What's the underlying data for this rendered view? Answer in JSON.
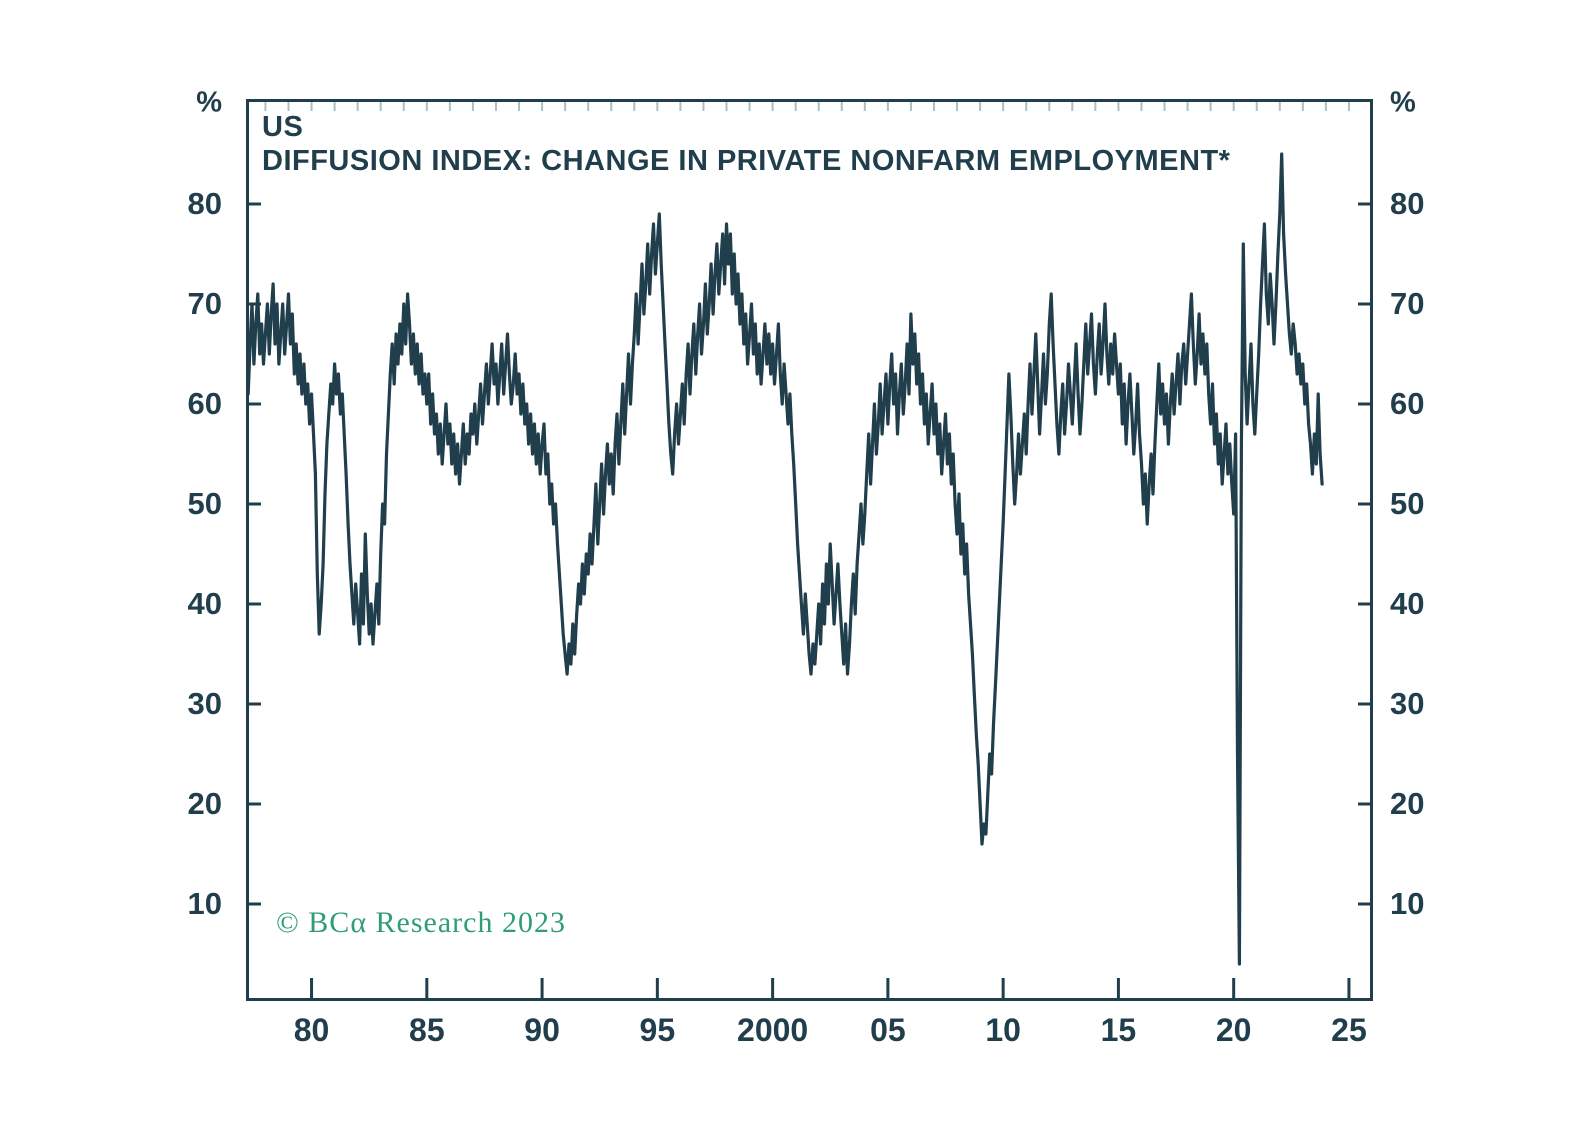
{
  "header": {
    "region": "US",
    "title": "DIFFUSION INDEX: CHANGE IN PRIVATE NONFARM EMPLOYMENT*"
  },
  "watermark": {
    "text": "© BCα Research 2023",
    "color": "#2f9e74"
  },
  "colors": {
    "ink": "#203e4b",
    "line": "#203e4b",
    "top_tick": "#aabfc7",
    "background": "#ffffff"
  },
  "axes": {
    "y": {
      "unit": "%",
      "tick_values": [
        10,
        20,
        30,
        40,
        50,
        60,
        70,
        80
      ],
      "labels_both_sides": true
    },
    "x": {
      "ticks": [
        {
          "year": 1980,
          "label": "80"
        },
        {
          "year": 1985,
          "label": "85"
        },
        {
          "year": 1990,
          "label": "90"
        },
        {
          "year": 1995,
          "label": "95"
        },
        {
          "year": 2000,
          "label": "2000"
        },
        {
          "year": 2005,
          "label": "05"
        },
        {
          "year": 2010,
          "label": "10"
        },
        {
          "year": 2015,
          "label": "15"
        },
        {
          "year": 2020,
          "label": "20"
        },
        {
          "year": 2025,
          "label": "25"
        }
      ],
      "top_minor_tick_start": 1978,
      "top_minor_tick_end": 2025
    }
  },
  "chart_data": {
    "type": "line",
    "title": "US DIFFUSION INDEX: CHANGE IN PRIVATE NONFARM EMPLOYMENT*",
    "xlabel": "",
    "ylabel": "%",
    "legend": "none",
    "grid": false,
    "xlim": [
      1977.2,
      2026.0
    ],
    "ylim": [
      0.4,
      90.4
    ],
    "x_start": 1977.25,
    "x_step": 0.0833333,
    "frequency": "monthly",
    "values": [
      61,
      66,
      70,
      64,
      68,
      71,
      65,
      68,
      64,
      67,
      70,
      65,
      69,
      72,
      66,
      70,
      64,
      67,
      70,
      65,
      68,
      71,
      66,
      69,
      63,
      66,
      62,
      65,
      61,
      64,
      60,
      62,
      58,
      61,
      57,
      53,
      43,
      37,
      40,
      44,
      51,
      56,
      59,
      62,
      60,
      64,
      61,
      63,
      59,
      61,
      57,
      53,
      48,
      44,
      41,
      38,
      42,
      39,
      36,
      43,
      38,
      47,
      41,
      37,
      40,
      36,
      39,
      42,
      38,
      45,
      50,
      48,
      55,
      59,
      63,
      66,
      62,
      67,
      64,
      68,
      65,
      70,
      66,
      71,
      68,
      64,
      67,
      63,
      66,
      62,
      65,
      61,
      63,
      60,
      63,
      58,
      61,
      57,
      59,
      55,
      58,
      54,
      57,
      60,
      56,
      58,
      54,
      57,
      53,
      56,
      52,
      55,
      58,
      54,
      57,
      55,
      59,
      57,
      60,
      56,
      59,
      62,
      58,
      61,
      64,
      60,
      63,
      66,
      62,
      64,
      60,
      63,
      66,
      61,
      64,
      67,
      63,
      60,
      62,
      65,
      61,
      63,
      59,
      62,
      58,
      60,
      56,
      59,
      55,
      58,
      54,
      57,
      53,
      56,
      58,
      53,
      55,
      50,
      52,
      48,
      50,
      46,
      43,
      40,
      37,
      35,
      33,
      36,
      34,
      38,
      35,
      39,
      42,
      40,
      44,
      41,
      45,
      43,
      47,
      44,
      48,
      52,
      46,
      50,
      54,
      49,
      53,
      56,
      52,
      55,
      51,
      56,
      59,
      54,
      58,
      62,
      57,
      61,
      65,
      60,
      64,
      67,
      71,
      66,
      70,
      74,
      69,
      72,
      76,
      71,
      75,
      78,
      73,
      76,
      79,
      74,
      70,
      66,
      62,
      58,
      55,
      53,
      57,
      60,
      56,
      59,
      62,
      58,
      63,
      66,
      61,
      65,
      68,
      63,
      67,
      70,
      65,
      68,
      72,
      67,
      70,
      74,
      69,
      73,
      76,
      71,
      74,
      77,
      72,
      78,
      74,
      77,
      71,
      75,
      70,
      73,
      68,
      71,
      66,
      69,
      64,
      67,
      70,
      65,
      68,
      63,
      66,
      62,
      65,
      68,
      64,
      67,
      63,
      66,
      62,
      65,
      68,
      63,
      60,
      64,
      61,
      58,
      61,
      57,
      54,
      50,
      46,
      43,
      40,
      37,
      41,
      38,
      35,
      33,
      36,
      34,
      37,
      40,
      36,
      42,
      38,
      44,
      40,
      46,
      42,
      38,
      41,
      44,
      40,
      37,
      34,
      38,
      33,
      36,
      40,
      43,
      39,
      44,
      47,
      50,
      46,
      49,
      53,
      57,
      52,
      56,
      60,
      55,
      58,
      62,
      57,
      60,
      63,
      58,
      62,
      65,
      60,
      63,
      57,
      61,
      64,
      59,
      62,
      66,
      61,
      69,
      64,
      67,
      62,
      65,
      60,
      63,
      58,
      61,
      56,
      59,
      62,
      57,
      60,
      55,
      58,
      53,
      56,
      59,
      54,
      57,
      52,
      55,
      50,
      47,
      51,
      45,
      48,
      43,
      46,
      41,
      38,
      35,
      31,
      27,
      24,
      20,
      16,
      18,
      17,
      21,
      25,
      23,
      28,
      32,
      36,
      40,
      44,
      48,
      53,
      58,
      63,
      59,
      54,
      50,
      53,
      57,
      53,
      56,
      59,
      55,
      60,
      64,
      59,
      63,
      67,
      62,
      57,
      61,
      65,
      60,
      63,
      68,
      71,
      66,
      62,
      58,
      55,
      59,
      62,
      57,
      60,
      64,
      61,
      58,
      62,
      66,
      61,
      57,
      60,
      64,
      68,
      63,
      66,
      69,
      64,
      61,
      65,
      68,
      63,
      66,
      70,
      65,
      62,
      66,
      63,
      67,
      64,
      61,
      64,
      58,
      62,
      56,
      60,
      63,
      59,
      55,
      58,
      62,
      57,
      54,
      50,
      53,
      48,
      52,
      55,
      51,
      56,
      60,
      64,
      59,
      62,
      58,
      61,
      56,
      60,
      63,
      59,
      62,
      65,
      60,
      64,
      66,
      62,
      65,
      68,
      71,
      66,
      62,
      65,
      69,
      64,
      67,
      63,
      66,
      61,
      58,
      62,
      56,
      59,
      54,
      57,
      52,
      55,
      58,
      53,
      56,
      52,
      49,
      57,
      25,
      4,
      56,
      76,
      63,
      58,
      62,
      66,
      60,
      57,
      61,
      65,
      70,
      74,
      78,
      71,
      68,
      73,
      70,
      66,
      70,
      75,
      79,
      85,
      77,
      73,
      70,
      67,
      65,
      68,
      66,
      63,
      65,
      62,
      64,
      60,
      62,
      58,
      56,
      53,
      57,
      54,
      61,
      55,
      52
    ]
  },
  "plot_geometry_note": "axis box with inward ticks; labels mirrored on both y axes"
}
